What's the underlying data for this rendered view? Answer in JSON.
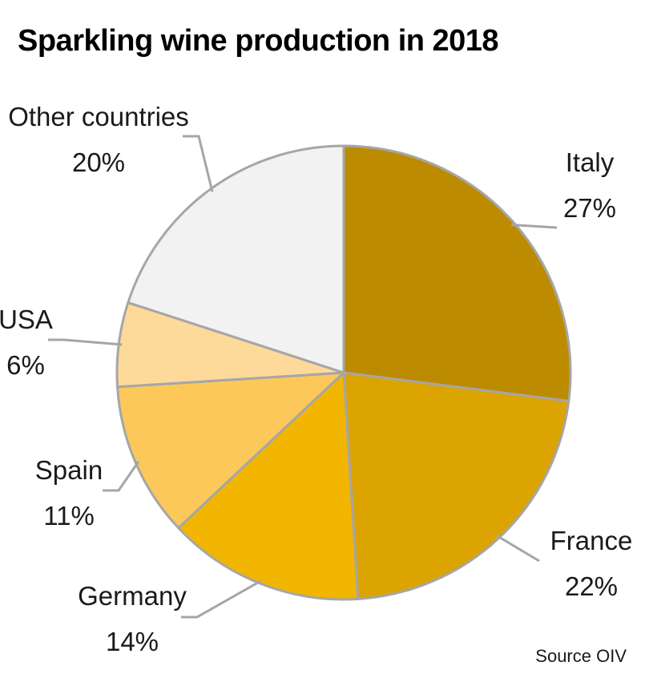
{
  "chart_data": {
    "type": "pie",
    "title": "Sparkling wine production in 2018",
    "categories": [
      "Italy",
      "France",
      "Germany",
      "Spain",
      "USA",
      "Other countries"
    ],
    "values": [
      27,
      22,
      14,
      11,
      6,
      20
    ],
    "value_labels": [
      "27%",
      "22%",
      "14%",
      "11%",
      "6%",
      "20%"
    ],
    "colors": [
      "#BC8B00",
      "#DBA400",
      "#F2B600",
      "#FCC85A",
      "#FDD99A",
      "#F2F2F2"
    ],
    "start_angle_deg": 0,
    "direction": "clockwise",
    "legend": "none",
    "source": "Source OIV"
  }
}
